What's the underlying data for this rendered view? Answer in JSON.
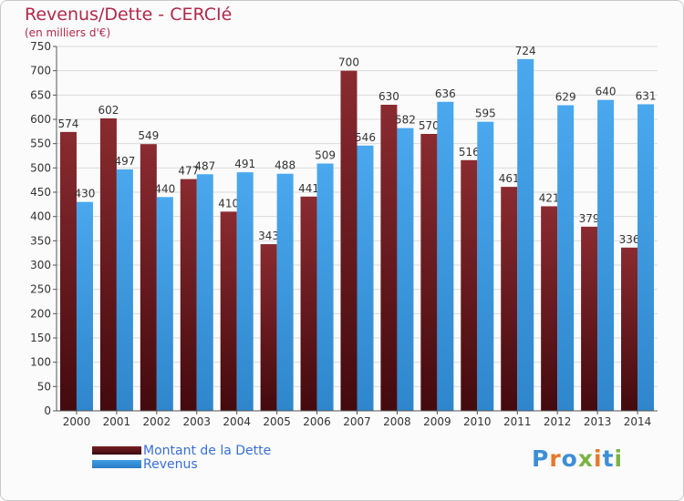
{
  "title": "Revenus/Dette - CERCIé",
  "subtitle": "(en milliers d'€)",
  "brand": {
    "text": "Proxiti",
    "letter_colors": [
      "#3d8fd6",
      "#e7792b",
      "#3d8fd6",
      "#7cb342",
      "#e7792b",
      "#3d8fd6",
      "#7cb342"
    ]
  },
  "legend": [
    {
      "label": "Montant de la Dette",
      "color": "#7a1f24"
    },
    {
      "label": "Revenus",
      "color": "#3e9ee6"
    }
  ],
  "chart_data": {
    "type": "bar",
    "categories": [
      "2000",
      "2001",
      "2002",
      "2003",
      "2004",
      "2005",
      "2006",
      "2007",
      "2008",
      "2009",
      "2010",
      "2011",
      "2012",
      "2013",
      "2014"
    ],
    "series": [
      {
        "name": "Montant de la Dette",
        "color": "#7a1f24",
        "values": [
          574,
          602,
          549,
          477,
          410,
          343,
          441,
          700,
          630,
          570,
          516,
          461,
          421,
          379,
          336
        ]
      },
      {
        "name": "Revenus",
        "color": "#3e9ee6",
        "values": [
          430,
          497,
          440,
          487,
          491,
          488,
          509,
          546,
          582,
          636,
          595,
          724,
          629,
          640,
          631
        ]
      }
    ],
    "ylim": [
      0,
      750
    ],
    "y_ticks": [
      0,
      50,
      100,
      150,
      200,
      250,
      300,
      350,
      400,
      450,
      500,
      550,
      600,
      650,
      700,
      750
    ],
    "grid": true,
    "legend_position": "bottom-left"
  }
}
